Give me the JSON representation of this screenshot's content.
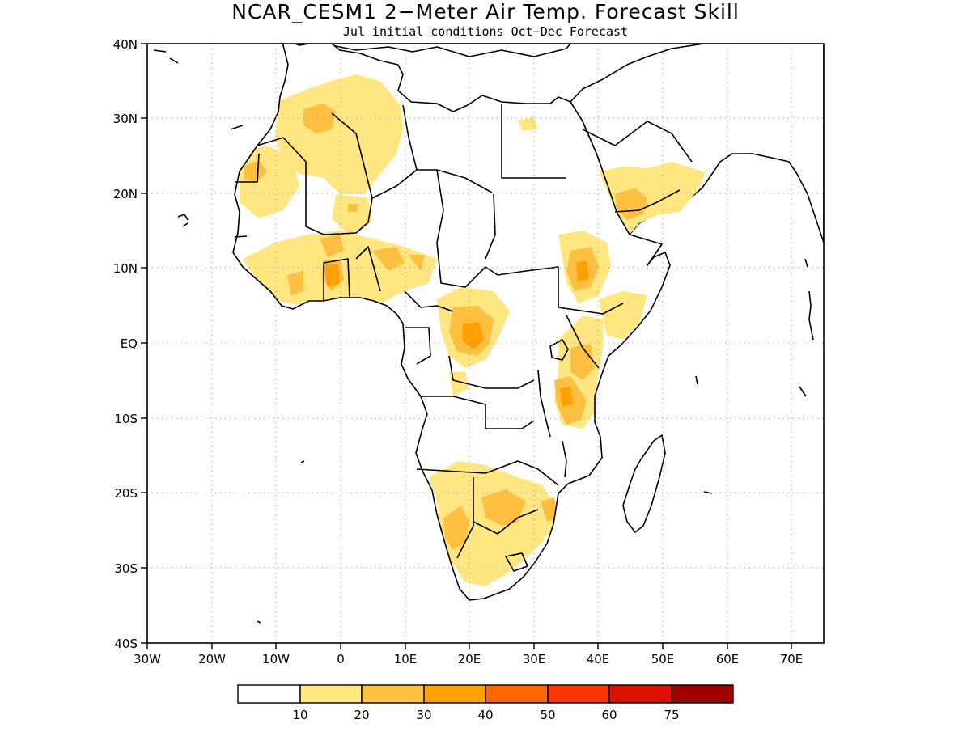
{
  "title": "NCAR_CESM1 2−Meter Air Temp. Forecast Skill",
  "subtitle": "Jul initial conditions   Oct−Dec Forecast",
  "lat_ticks": [
    "40N",
    "30N",
    "20N",
    "10N",
    "EQ",
    "10S",
    "20S",
    "30S",
    "40S"
  ],
  "lon_ticks": [
    "30W",
    "20W",
    "10W",
    "0",
    "10E",
    "20E",
    "30E",
    "40E",
    "50E",
    "60E",
    "70E"
  ],
  "colorbar": {
    "colors": [
      "#ffffff",
      "#ffe680",
      "#ffbf40",
      "#ff9f00",
      "#ff6600",
      "#ff3300",
      "#dd1100",
      "#a00000"
    ],
    "labels": [
      "10",
      "20",
      "30",
      "40",
      "50",
      "60",
      "75"
    ]
  },
  "map": {
    "region": "Africa",
    "lon_range": [
      -30,
      75
    ],
    "lat_range": [
      -40,
      40
    ],
    "grid": true
  }
}
